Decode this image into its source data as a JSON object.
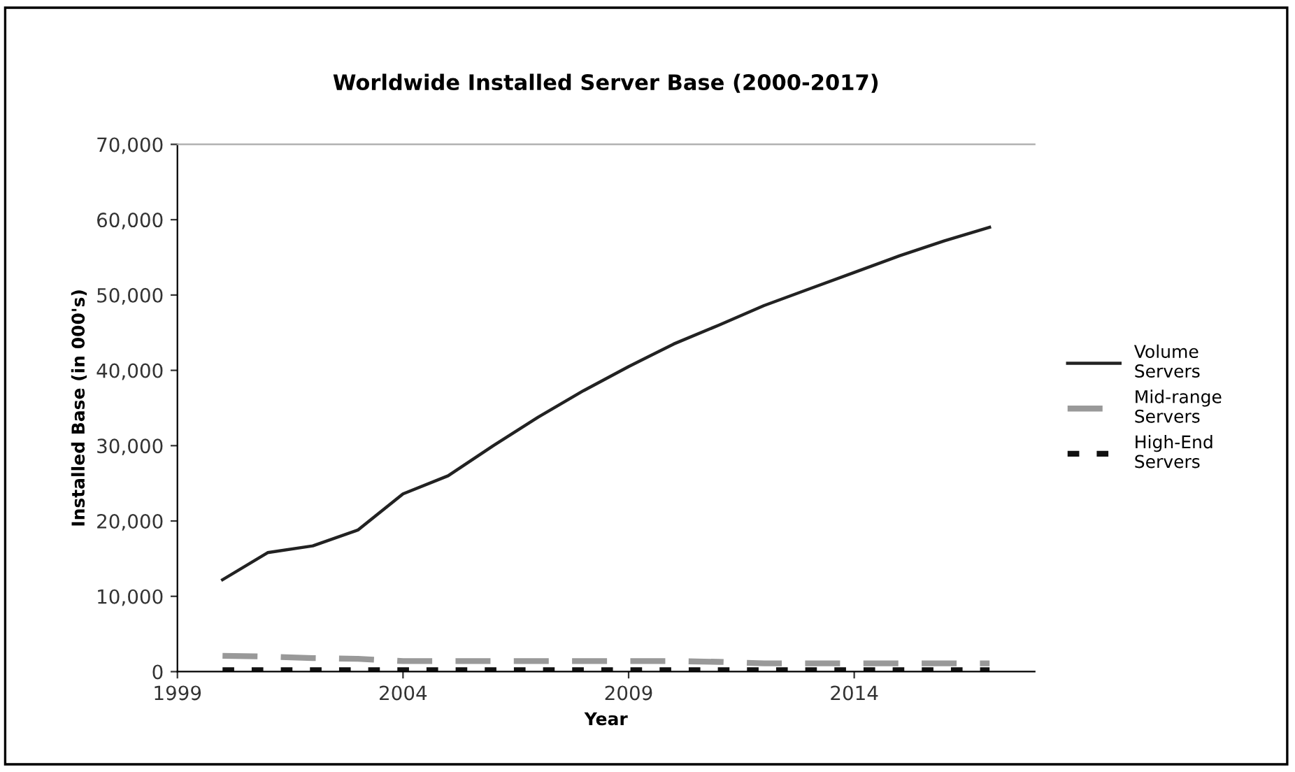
{
  "chart_data": {
    "type": "line",
    "title": "Worldwide Installed Server Base (2000-2017)",
    "xlabel": "Year",
    "ylabel": "Installed Base (in 000's)",
    "x": [
      2000,
      2001,
      2002,
      2003,
      2004,
      2005,
      2006,
      2007,
      2008,
      2009,
      2010,
      2011,
      2012,
      2013,
      2014,
      2015,
      2016,
      2017
    ],
    "series": [
      {
        "name": "Volume Servers",
        "color": "#222222",
        "line_style": "solid",
        "values": [
          12200,
          15800,
          16700,
          18800,
          23600,
          26000,
          30000,
          33800,
          37300,
          40500,
          43500,
          46000,
          48600,
          50800,
          53000,
          55200,
          57200,
          59000
        ]
      },
      {
        "name": "Mid-range Servers",
        "color": "#999999",
        "line_style": "dashed",
        "values": [
          2100,
          2000,
          1800,
          1700,
          1400,
          1400,
          1400,
          1400,
          1400,
          1400,
          1400,
          1300,
          1100,
          1100,
          1100,
          1100,
          1100,
          1100
        ]
      },
      {
        "name": "High-End Servers",
        "color": "#111111",
        "line_style": "dotted",
        "values": [
          200,
          200,
          200,
          200,
          200,
          200,
          200,
          200,
          200,
          200,
          200,
          200,
          200,
          200,
          200,
          200,
          200,
          200
        ]
      }
    ],
    "xlim": [
      1999,
      2018
    ],
    "xticks": [
      1999,
      2004,
      2009,
      2014
    ],
    "ylim": [
      0,
      70000
    ],
    "yticks": [
      {
        "value": 0,
        "label": "0"
      },
      {
        "value": 10000,
        "label": "10,000"
      },
      {
        "value": 20000,
        "label": "20,000"
      },
      {
        "value": 30000,
        "label": "30,000"
      },
      {
        "value": 40000,
        "label": "40,000"
      },
      {
        "value": 50000,
        "label": "50,000"
      },
      {
        "value": 60000,
        "label": "60,000"
      },
      {
        "value": 70000,
        "label": "70,000"
      }
    ],
    "grid": false,
    "legend": "right",
    "marker": "none"
  }
}
